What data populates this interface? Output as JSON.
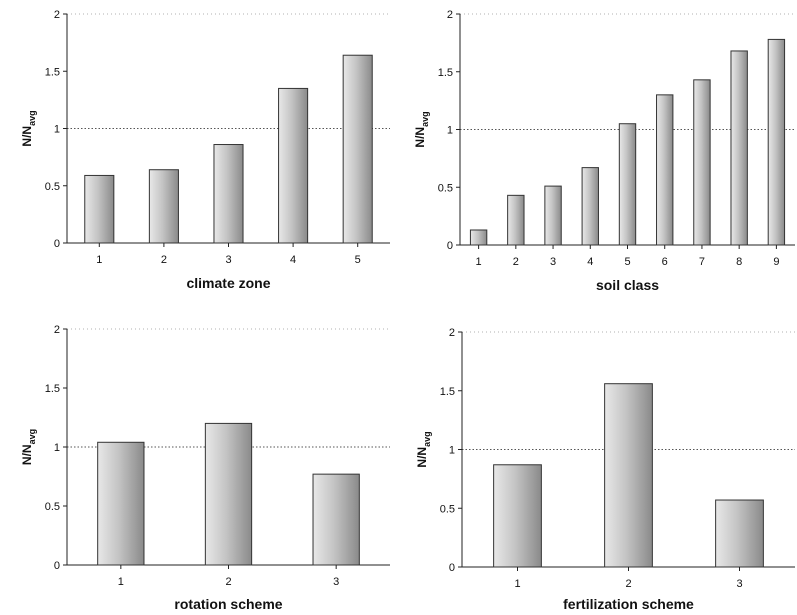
{
  "chart_data": [
    {
      "type": "bar",
      "categories": [
        "1",
        "2",
        "3",
        "4",
        "5"
      ],
      "values": [
        0.59,
        0.64,
        0.86,
        1.35,
        1.64
      ],
      "xlabel": "climate zone",
      "ylabel": "N/N",
      "ylabel_sub": "avg",
      "ylim": [
        0,
        2
      ],
      "yticks": [
        "0",
        "0.5",
        "1",
        "1.5",
        "2"
      ],
      "reference_line": 1,
      "grid": false,
      "legend": "none"
    },
    {
      "type": "bar",
      "categories": [
        "1",
        "2",
        "3",
        "4",
        "5",
        "6",
        "7",
        "8",
        "9"
      ],
      "values": [
        0.13,
        0.43,
        0.51,
        0.67,
        1.05,
        1.3,
        1.43,
        1.68,
        1.78
      ],
      "xlabel": "soil class",
      "ylabel": "N/N",
      "ylabel_sub": "avg",
      "ylim": [
        0,
        2
      ],
      "yticks": [
        "0",
        "0.5",
        "1",
        "1.5",
        "2"
      ],
      "reference_line": 1,
      "grid": false,
      "legend": "none"
    },
    {
      "type": "bar",
      "categories": [
        "1",
        "2",
        "3"
      ],
      "values": [
        1.04,
        1.2,
        0.77
      ],
      "xlabel": "rotation scheme",
      "ylabel": "N/N",
      "ylabel_sub": "avg",
      "ylim": [
        0,
        2
      ],
      "yticks": [
        "0",
        "0.5",
        "1",
        "1.5",
        "2"
      ],
      "reference_line": 1,
      "grid": false,
      "legend": "none"
    },
    {
      "type": "bar",
      "categories": [
        "1",
        "2",
        "3"
      ],
      "values": [
        0.87,
        1.56,
        0.57
      ],
      "xlabel": "fertilization scheme",
      "ylabel": "N/N",
      "ylabel_sub": "avg",
      "ylim": [
        0,
        2
      ],
      "yticks": [
        "0",
        "0.5",
        "1",
        "1.5",
        "2"
      ],
      "reference_line": 1,
      "grid": false,
      "legend": "none"
    }
  ],
  "colors": {
    "bar_fill": "#bdbdbd",
    "bar_stroke": "#333333",
    "axis": "#222222",
    "reference_line": "#555555"
  }
}
